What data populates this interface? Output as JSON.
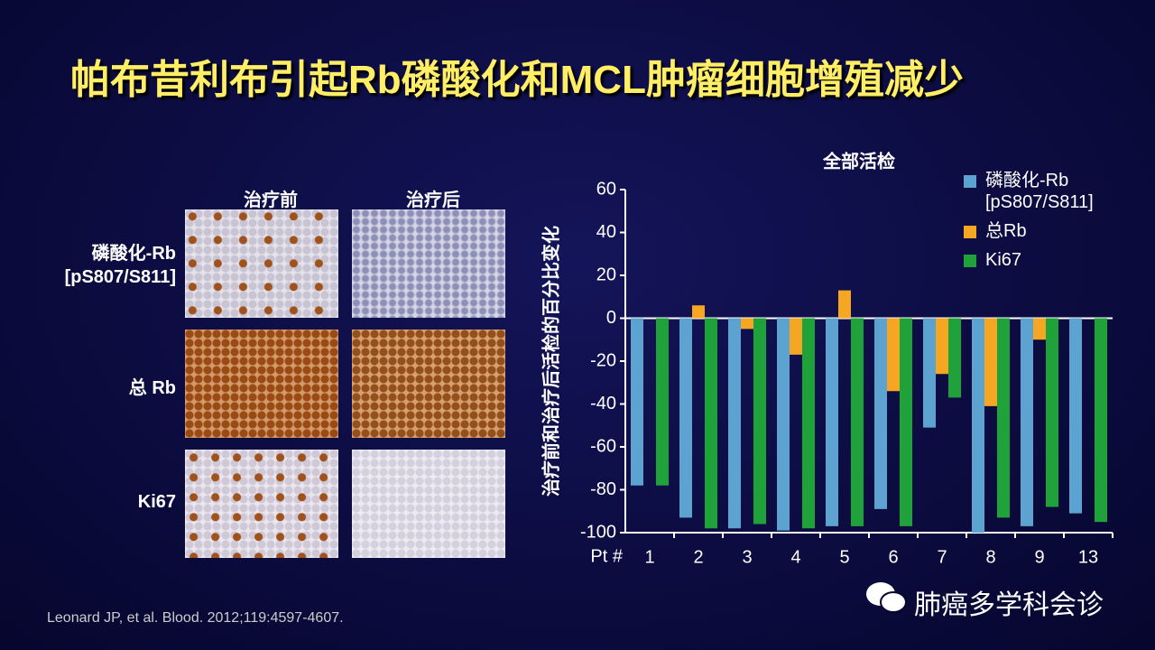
{
  "slide_title": "帕布昔利布引起Rb磷酸化和MCL肿瘤细胞增殖减少",
  "image_grid": {
    "columns": [
      "治疗前",
      "治疗后"
    ],
    "rows": [
      "磷酸化-Rb [pS807/S811]",
      "总 Rb",
      "Ki67"
    ]
  },
  "citation": "Leonard JP, et al. Blood. 2012;119:4597-4607.",
  "watermark": "肺癌多学科会诊",
  "chart_data": {
    "type": "bar",
    "title": "全部活检",
    "y_label": "治疗前和治疗后活检的百分比变化",
    "x_label": "Pt #",
    "categories": [
      "1",
      "2",
      "3",
      "4",
      "5",
      "6",
      "7",
      "8",
      "9",
      "13"
    ],
    "series": [
      {
        "name": "磷酸化-Rb [pS807/S811]",
        "color": "#5da3d1",
        "values": [
          -78,
          -93,
          -98,
          -99,
          -97,
          -89,
          -51,
          -100,
          -97,
          -91
        ]
      },
      {
        "name": "总Rb",
        "color": "#f5a623",
        "values": [
          null,
          6,
          -5,
          -17,
          13,
          -34,
          -26,
          -41,
          -10,
          null
        ]
      },
      {
        "name": "Ki67",
        "color": "#1fa23a",
        "values": [
          -78,
          -98,
          -96,
          -98,
          -97,
          -97,
          -37,
          -93,
          -88,
          -95
        ]
      }
    ],
    "ylim": [
      -100,
      60
    ],
    "yticks": [
      -100,
      -80,
      -60,
      -40,
      -20,
      0,
      20,
      40,
      60
    ]
  }
}
